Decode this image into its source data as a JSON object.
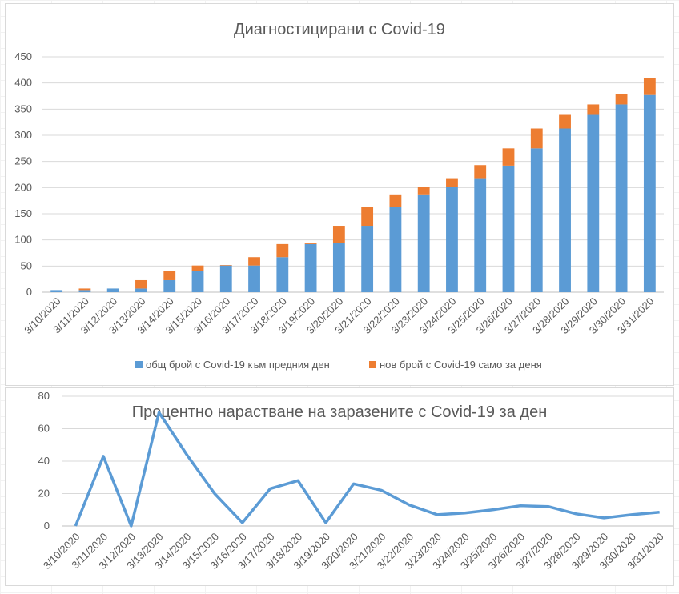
{
  "chart_data": [
    {
      "type": "bar",
      "stacked": true,
      "title": "Диагностицирани с Covid-19",
      "categories": [
        "3/10/2020",
        "3/11/2020",
        "3/12/2020",
        "3/13/2020",
        "3/14/2020",
        "3/15/2020",
        "3/16/2020",
        "3/17/2020",
        "3/18/2020",
        "3/19/2020",
        "3/20/2020",
        "3/21/2020",
        "3/22/2020",
        "3/23/2020",
        "3/24/2020",
        "3/25/2020",
        "3/26/2020",
        "3/27/2020",
        "3/28/2020",
        "3/29/2020",
        "3/30/2020",
        "3/31/2020"
      ],
      "series": [
        {
          "name": "общ брой с Covid-19 към предния ден",
          "color": "#5b9bd5",
          "values": [
            4,
            4,
            7,
            7,
            23,
            41,
            51,
            51,
            67,
            92,
            94,
            127,
            163,
            187,
            201,
            218,
            242,
            275,
            313,
            339,
            359,
            377
          ]
        },
        {
          "name": "нов брой с Covid-19 само за деня",
          "color": "#ed7d31",
          "values": [
            0,
            3,
            0,
            16,
            18,
            10,
            1,
            16,
            25,
            2,
            33,
            36,
            24,
            14,
            17,
            25,
            33,
            38,
            26,
            20,
            20,
            33
          ]
        }
      ],
      "ylim": [
        0,
        450
      ],
      "yticks": [
        "0",
        "50",
        "100",
        "150",
        "200",
        "250",
        "300",
        "350",
        "400",
        "450"
      ],
      "grid": true,
      "legend": "bottom"
    },
    {
      "type": "line",
      "title": "Процентно нарастване на заразените с Covid-19 за ден",
      "categories": [
        "3/10/2020",
        "3/11/2020",
        "3/12/2020",
        "3/13/2020",
        "3/14/2020",
        "3/15/2020",
        "3/16/2020",
        "3/17/2020",
        "3/18/2020",
        "3/19/2020",
        "3/20/2020",
        "3/21/2020",
        "3/22/2020",
        "3/23/2020",
        "3/24/2020",
        "3/25/2020",
        "3/26/2020",
        "3/27/2020",
        "3/28/2020",
        "3/29/2020",
        "3/30/2020",
        "3/31/2020"
      ],
      "series": [
        {
          "color": "#5b9bd5",
          "values": [
            0,
            43,
            0,
            70,
            44,
            20,
            2,
            23,
            28,
            2,
            26,
            22,
            13,
            7,
            8,
            10,
            12.5,
            12,
            7.5,
            5,
            7,
            8.5
          ]
        }
      ],
      "ylim": [
        0,
        80
      ],
      "yticks": [
        "0",
        "20",
        "40",
        "60",
        "80"
      ],
      "grid": true,
      "legend": "none"
    }
  ]
}
